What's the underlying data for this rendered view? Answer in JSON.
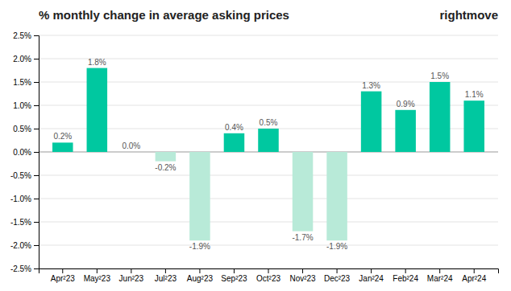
{
  "chart_data": {
    "type": "bar",
    "title": "% monthly change in average asking prices",
    "annotations": [
      "rightmove"
    ],
    "categories": [
      "Apr²23",
      "May²23",
      "Jun²23",
      "Jul²23",
      "Aug²23",
      "Sep²23",
      "Oct²23",
      "Nov²23",
      "Dec²23",
      "Jan²24",
      "Feb²24",
      "Mar²24",
      "Apr²24"
    ],
    "values": [
      0.2,
      1.8,
      0.0,
      -0.2,
      -1.9,
      0.4,
      0.5,
      -1.7,
      -1.9,
      1.3,
      0.9,
      1.5,
      1.1
    ],
    "value_labels": [
      "0.2%",
      "1.8%",
      "0.0%",
      "-0.2%",
      "-1.9%",
      "0.4%",
      "0.5%",
      "-1.7%",
      "-1.9%",
      "1.3%",
      "0.9%",
      "1.5%",
      "1.1%"
    ],
    "data_labels": true,
    "colors": [
      "#00c8a0",
      "#00c8a0",
      "#00c8a0",
      "#b8ead8",
      "#b8ead8",
      "#00c8a0",
      "#00c8a0",
      "#b8ead8",
      "#b8ead8",
      "#00c8a0",
      "#00c8a0",
      "#00c8a0",
      "#00c8a0"
    ],
    "ylim": [
      -2.5,
      2.5
    ],
    "yticks": [
      {
        "value": -2.5,
        "label": "-2.5%"
      },
      {
        "value": -2.0,
        "label": "-2.0%"
      },
      {
        "value": -1.5,
        "label": "-1.5%"
      },
      {
        "value": -1.0,
        "label": "-1.0%"
      },
      {
        "value": -0.5,
        "label": "-0.5%"
      },
      {
        "value": 0.0,
        "label": "0.0%"
      },
      {
        "value": 0.5,
        "label": "0.5%"
      },
      {
        "value": 1.0,
        "label": "1.0%"
      },
      {
        "value": 1.5,
        "label": "1.5%"
      },
      {
        "value": 2.0,
        "label": "2.0%"
      },
      {
        "value": 2.5,
        "label": "2.5%"
      }
    ],
    "grid": true
  }
}
